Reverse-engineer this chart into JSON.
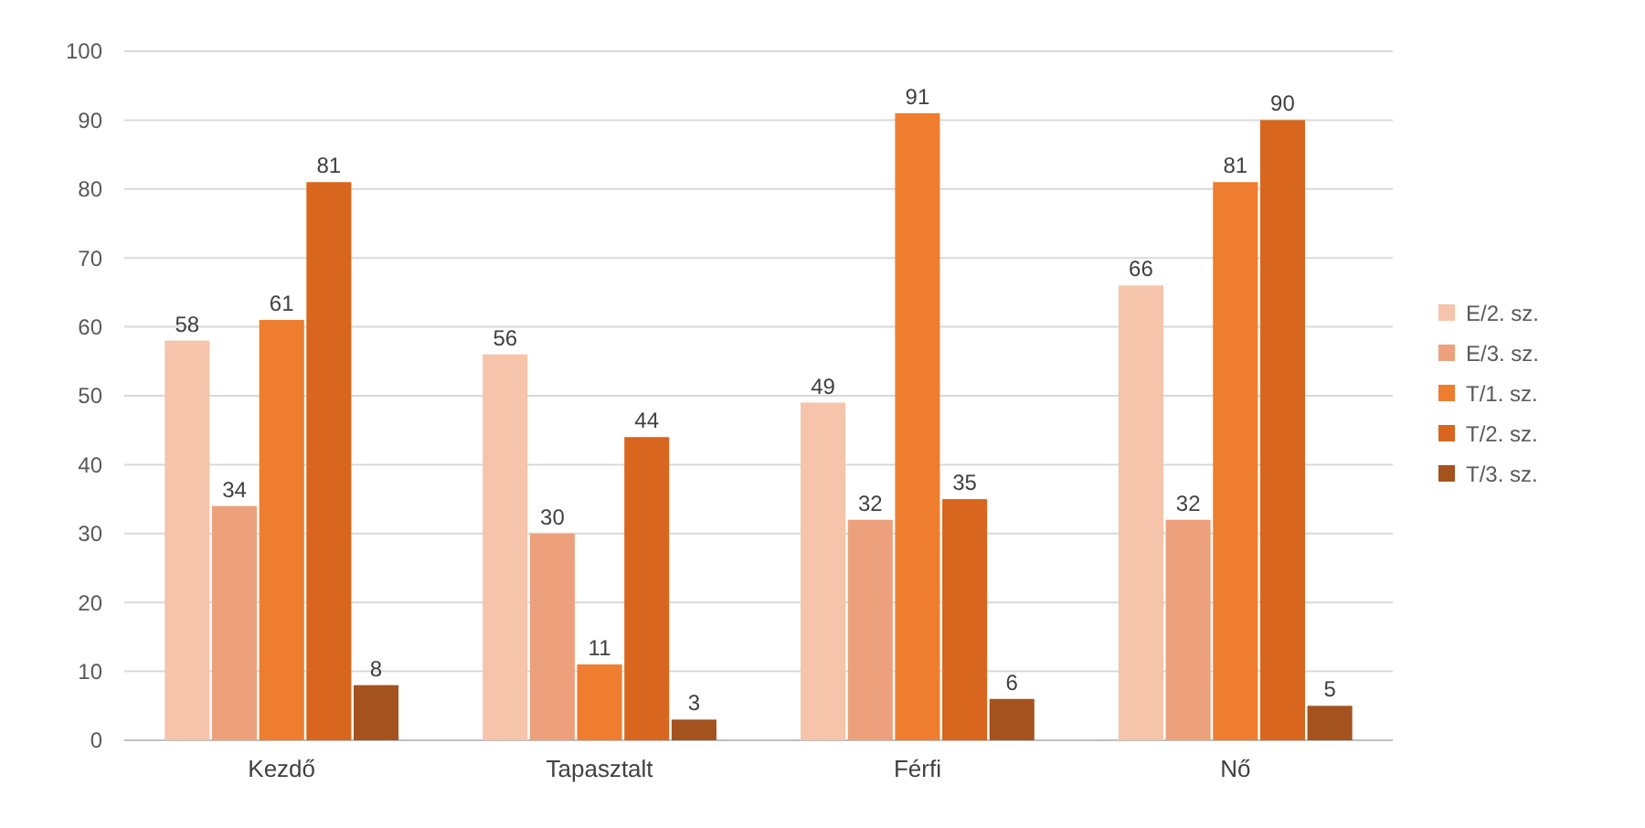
{
  "chart_data": {
    "type": "bar",
    "categories": [
      "Kezdő",
      "Tapasztalt",
      "Férfi",
      "Nő"
    ],
    "series": [
      {
        "name": "E/2. sz.",
        "color": "#f5c4aa",
        "values": [
          58,
          56,
          49,
          66
        ]
      },
      {
        "name": "E/3. sz.",
        "color": "#eda07c",
        "values": [
          34,
          30,
          32,
          32
        ]
      },
      {
        "name": "T/1. sz.",
        "color": "#ee7d30",
        "values": [
          61,
          11,
          91,
          81
        ]
      },
      {
        "name": "T/2. sz.",
        "color": "#d8661e",
        "values": [
          81,
          44,
          35,
          90
        ]
      },
      {
        "name": "T/3. sz.",
        "color": "#a4521e",
        "values": [
          8,
          3,
          6,
          5
        ]
      }
    ],
    "ylim": [
      0,
      100
    ],
    "yticks": [
      0,
      10,
      20,
      30,
      40,
      50,
      60,
      70,
      80,
      90,
      100
    ],
    "grid": "y",
    "legend": "right",
    "data_labels": true
  }
}
